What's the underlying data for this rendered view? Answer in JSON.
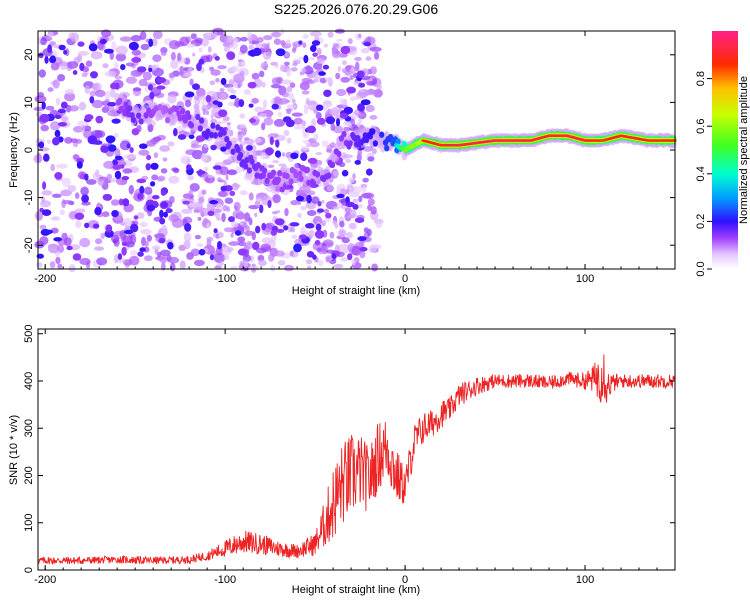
{
  "title": "S225.2026.076.20.29.G06",
  "chart_data": [
    {
      "type": "heatmap",
      "name": "spectrogram",
      "xlabel": "Height of straight line (km)",
      "ylabel": "Frequency (Hz)",
      "xlim": [
        -204,
        150
      ],
      "ylim": [
        -25,
        25
      ],
      "xticks": [
        -200,
        -100,
        0,
        100
      ],
      "xtick_labels": [
        "-200",
        "-100",
        "0",
        "100"
      ],
      "yticks": [
        -20,
        -10,
        0,
        10,
        20
      ],
      "ytick_labels": [
        "-20",
        "-10",
        "0",
        "10",
        "20"
      ],
      "colorbar": {
        "label": "Normalized spectral amplitude",
        "range": [
          0,
          1
        ],
        "ticks": [
          0,
          0.2,
          0.4,
          0.6,
          0.8
        ],
        "tick_labels": [
          "0.0",
          "0.2",
          "0.4",
          "0.6",
          "0.8"
        ]
      },
      "ridge": [
        {
          "x": -160,
          "freq": 10,
          "amp": 0.22
        },
        {
          "x": -150,
          "freq": 7,
          "amp": 0.3
        },
        {
          "x": -135,
          "freq": 8,
          "amp": 0.2
        },
        {
          "x": -115,
          "freq": 6,
          "amp": 0.28
        },
        {
          "x": -110,
          "freq": 4,
          "amp": 0.32
        },
        {
          "x": -100,
          "freq": 3,
          "amp": 0.3
        },
        {
          "x": -90,
          "freq": -2,
          "amp": 0.3
        },
        {
          "x": -75,
          "freq": -6,
          "amp": 0.25
        },
        {
          "x": -60,
          "freq": -5,
          "amp": 0.22
        },
        {
          "x": -45,
          "freq": -6,
          "amp": 0.28
        },
        {
          "x": -35,
          "freq": 2,
          "amp": 0.25
        },
        {
          "x": -20,
          "freq": 3,
          "amp": 0.35
        },
        {
          "x": -5,
          "freq": 1,
          "amp": 0.45
        },
        {
          "x": 0,
          "freq": 0,
          "amp": 0.75
        },
        {
          "x": 10,
          "freq": 2,
          "amp": 0.85
        },
        {
          "x": 20,
          "freq": 1,
          "amp": 0.9
        },
        {
          "x": 30,
          "freq": 1,
          "amp": 0.92
        },
        {
          "x": 50,
          "freq": 2,
          "amp": 0.95
        },
        {
          "x": 70,
          "freq": 2,
          "amp": 0.93
        },
        {
          "x": 80,
          "freq": 3,
          "amp": 0.9
        },
        {
          "x": 90,
          "freq": 3,
          "amp": 0.93
        },
        {
          "x": 100,
          "freq": 2,
          "amp": 0.92
        },
        {
          "x": 110,
          "freq": 2,
          "amp": 0.85
        },
        {
          "x": 120,
          "freq": 3,
          "amp": 0.9
        },
        {
          "x": 135,
          "freq": 2,
          "amp": 0.88
        },
        {
          "x": 150,
          "freq": 2,
          "amp": 0.88
        }
      ]
    },
    {
      "type": "line",
      "name": "snr",
      "xlabel": "Height of straight line (km)",
      "ylabel": "SNR (10 * v/v)",
      "xlim": [
        -204,
        150
      ],
      "ylim": [
        0,
        510
      ],
      "xticks": [
        -200,
        -100,
        0,
        100
      ],
      "xtick_labels": [
        "-200",
        "-100",
        "0",
        "100"
      ],
      "yticks": [
        0,
        100,
        200,
        300,
        400,
        500
      ],
      "ytick_labels": [
        "0",
        "100",
        "200",
        "300",
        "400",
        "500"
      ],
      "color": "#ee2222",
      "series": [
        {
          "name": "SNR",
          "x": [
            -204,
            -180,
            -160,
            -140,
            -120,
            -110,
            -100,
            -90,
            -80,
            -70,
            -60,
            -50,
            -45,
            -40,
            -35,
            -30,
            -25,
            -20,
            -15,
            -10,
            -5,
            0,
            5,
            10,
            15,
            20,
            25,
            30,
            40,
            50,
            60,
            70,
            80,
            90,
            100,
            105,
            108,
            110,
            112,
            115,
            120,
            130,
            140,
            150
          ],
          "y": [
            20,
            20,
            22,
            20,
            22,
            30,
            45,
            60,
            55,
            45,
            40,
            55,
            95,
            140,
            180,
            200,
            210,
            190,
            240,
            260,
            200,
            175,
            270,
            300,
            310,
            330,
            340,
            370,
            390,
            400,
            400,
            400,
            395,
            405,
            400,
            405,
            410,
            430,
            390,
            395,
            400,
            400,
            400,
            400
          ],
          "noise": [
            8,
            8,
            8,
            8,
            8,
            10,
            18,
            25,
            22,
            18,
            15,
            25,
            50,
            80,
            90,
            90,
            80,
            70,
            75,
            70,
            60,
            40,
            40,
            35,
            30,
            30,
            25,
            25,
            20,
            15,
            15,
            15,
            15,
            15,
            18,
            30,
            60,
            70,
            40,
            20,
            15,
            15,
            15,
            15
          ]
        }
      ]
    }
  ]
}
